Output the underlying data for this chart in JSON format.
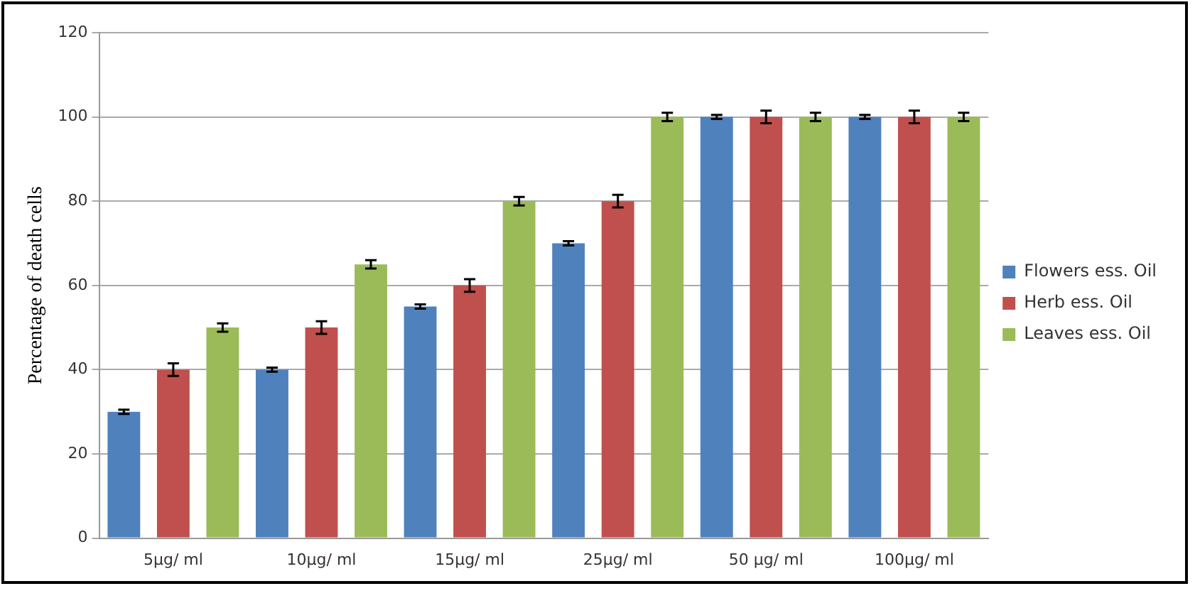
{
  "chart_data": {
    "type": "bar",
    "ylabel": "Percentage of death cells",
    "categories": [
      "5µg/ ml",
      "10µg/ ml",
      "15µg/ ml",
      "25µg/ ml",
      "50 µg/ ml",
      "100µg/ ml"
    ],
    "series": [
      {
        "name": "Flowers ess. Oil",
        "color": "#4f81bd",
        "values": [
          30,
          40,
          55,
          70,
          100,
          100
        ],
        "errors": [
          0.5,
          0.5,
          0.5,
          0.5,
          0.5,
          0.5
        ]
      },
      {
        "name": "Herb ess. Oil",
        "color": "#c0504d",
        "values": [
          40,
          50,
          60,
          80,
          100,
          100
        ],
        "errors": [
          1.5,
          1.5,
          1.5,
          1.5,
          1.5,
          1.5
        ]
      },
      {
        "name": "Leaves ess. Oil",
        "color": "#9bbb59",
        "values": [
          50,
          65,
          80,
          100,
          100,
          100
        ],
        "errors": [
          1,
          1,
          1,
          1,
          1,
          1
        ]
      }
    ],
    "ylim": [
      0,
      120
    ],
    "yticks": [
      0,
      20,
      40,
      60,
      80,
      100,
      120
    ],
    "grid": "y",
    "legend": "right"
  }
}
